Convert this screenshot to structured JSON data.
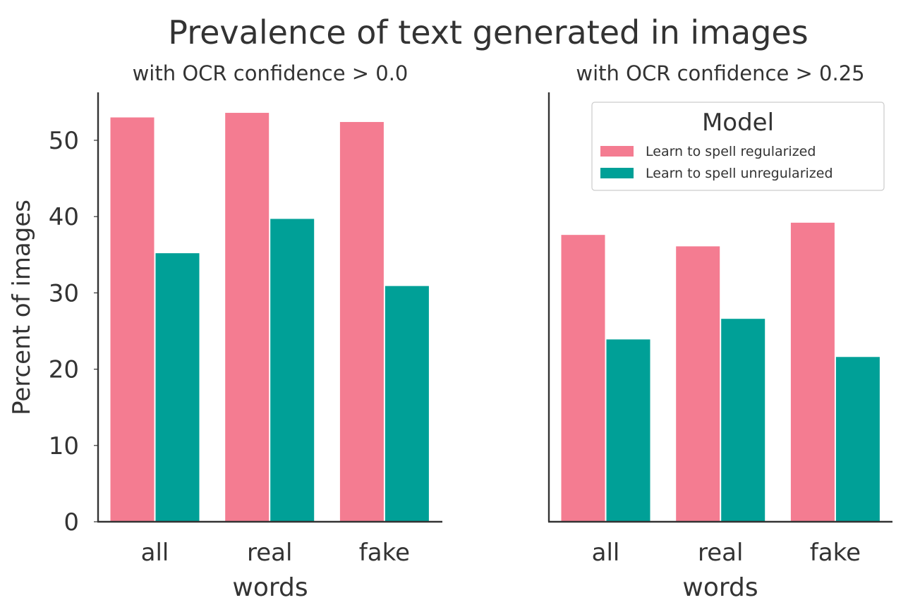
{
  "chart_data": {
    "type": "bar",
    "title": "Prevalence of text generated in images",
    "ylabel": "Percent of images",
    "xlabel": "words",
    "categories": [
      "all",
      "real",
      "fake"
    ],
    "ylim": [
      0,
      56.5
    ],
    "yticks": [
      0,
      10,
      20,
      30,
      40,
      50
    ],
    "grid": false,
    "legend": {
      "title": "Model",
      "placement": "top-right of right panel",
      "entries": [
        "Learn to spell regularized",
        "Learn to spell unregularized"
      ]
    },
    "colors": [
      "#f47c91",
      "#00a097"
    ],
    "panels": [
      {
        "subtitle": "with OCR confidence > 0.0",
        "series": [
          {
            "name": "Learn to spell regularized",
            "values": [
              53.0,
              53.6,
              52.4
            ]
          },
          {
            "name": "Learn to spell unregularized",
            "values": [
              35.2,
              39.7,
              30.9
            ]
          }
        ]
      },
      {
        "subtitle": "with OCR confidence > 0.25",
        "series": [
          {
            "name": "Learn to spell regularized",
            "values": [
              37.6,
              36.1,
              39.2
            ]
          },
          {
            "name": "Learn to spell unregularized",
            "values": [
              23.9,
              26.6,
              21.6
            ]
          }
        ]
      }
    ]
  }
}
